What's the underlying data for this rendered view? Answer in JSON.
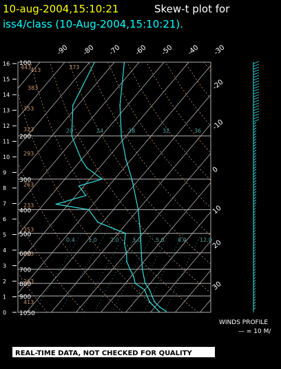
{
  "header": {
    "title_date": "10-aug-2004,15:10:21",
    "title_rest": "Skew-t plot for",
    "subtitle": "iss4/class (10-Aug-2004,15:10:21)."
  },
  "footer": {
    "warning": "REAL-TIME DATA, NOT CHECKED FOR QUALITY",
    "winds_title": "WINDS PROFILE",
    "winds_scale": "— = 10 M/"
  },
  "colors": {
    "background": "#000000",
    "title_date": "#ffff00",
    "title_text": "#ffffff",
    "subtitle": "#00ffff",
    "profile": "#33dddd",
    "winds": "#33dddd",
    "grid": "#b0b0b0",
    "theta": "#c8956a",
    "mixing_ratio": "#4aa3a3",
    "thetae": "#b0b0b0"
  },
  "chart_data": {
    "type": "line",
    "title": "Skew-t plot for iss4/class (10-Aug-2004,15:10:21).",
    "pressure_labels": [
      "100",
      "200",
      "300",
      "400",
      "500",
      "600",
      "700",
      "800",
      "900",
      "1050"
    ],
    "pressure_levels_hpa": [
      100,
      200,
      300,
      400,
      500,
      600,
      700,
      800,
      900,
      1050
    ],
    "height_ticks_km": [
      "16",
      "15",
      "14",
      "13",
      "12",
      "11",
      "10",
      "9",
      "8",
      "7",
      "6",
      "5",
      "4",
      "3",
      "2",
      "1",
      "0"
    ],
    "temperature_ticks_top": [
      "-90",
      "-80",
      "-70",
      "-60",
      "-50",
      "-40",
      "-30"
    ],
    "temperature_ticks_right": [
      "-20",
      "-10",
      "0",
      "10",
      "20",
      "30"
    ],
    "theta_labels": [
      "443",
      "413",
      "383",
      "353",
      "323",
      "293",
      "263",
      "233",
      "353",
      "323",
      "263",
      "413",
      "373"
    ],
    "mixing_ratio_labels": [
      "20",
      "24",
      "28",
      "32",
      "36",
      "0.4",
      "1.0",
      "2.0",
      "3.0",
      "5.0",
      "8.0",
      "12.0"
    ],
    "ylim_hpa": [
      1050,
      100
    ],
    "temperature_profile": [
      {
        "p": 1040,
        "t": 26
      },
      {
        "p": 1000,
        "t": 22
      },
      {
        "p": 950,
        "t": 18
      },
      {
        "p": 900,
        "t": 15
      },
      {
        "p": 850,
        "t": 12
      },
      {
        "p": 800,
        "t": 8
      },
      {
        "p": 700,
        "t": 2
      },
      {
        "p": 600,
        "t": -4
      },
      {
        "p": 500,
        "t": -11
      },
      {
        "p": 400,
        "t": -20
      },
      {
        "p": 300,
        "t": -33
      },
      {
        "p": 250,
        "t": -42
      },
      {
        "p": 200,
        "t": -52
      },
      {
        "p": 150,
        "t": -63
      },
      {
        "p": 100,
        "t": -76
      }
    ],
    "dewpoint_profile": [
      {
        "p": 1040,
        "t": 23
      },
      {
        "p": 1000,
        "t": 20
      },
      {
        "p": 950,
        "t": 16
      },
      {
        "p": 900,
        "t": 13
      },
      {
        "p": 850,
        "t": 10
      },
      {
        "p": 800,
        "t": 4
      },
      {
        "p": 750,
        "t": 1
      },
      {
        "p": 700,
        "t": -3
      },
      {
        "p": 650,
        "t": -7
      },
      {
        "p": 600,
        "t": -10
      },
      {
        "p": 550,
        "t": -14
      },
      {
        "p": 500,
        "t": -17
      },
      {
        "p": 450,
        "t": -32
      },
      {
        "p": 400,
        "t": -40
      },
      {
        "p": 380,
        "t": -55
      },
      {
        "p": 350,
        "t": -46
      },
      {
        "p": 320,
        "t": -52
      },
      {
        "p": 300,
        "t": -45
      },
      {
        "p": 270,
        "t": -55
      },
      {
        "p": 250,
        "t": -60
      },
      {
        "p": 200,
        "t": -72
      },
      {
        "p": 150,
        "t": -82
      },
      {
        "p": 100,
        "t": -88
      }
    ]
  }
}
